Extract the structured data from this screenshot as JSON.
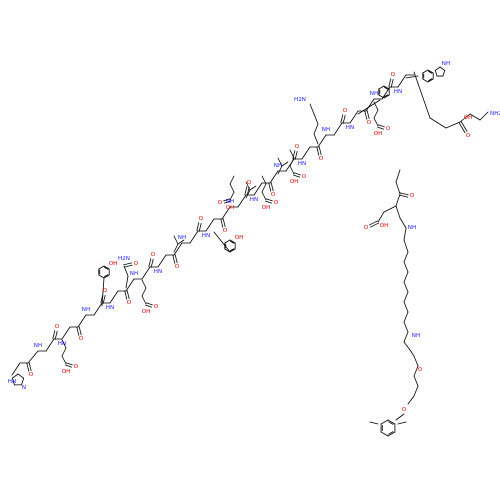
{
  "structure": {
    "kind": "skeletal-formula",
    "molecule": "lipidated peptide (linear amino-acid chain with Lys side-chain fatty-diacid / aryl-ether linker)",
    "colors": {
      "bond": "#000000",
      "oxygen": "#e00000",
      "nitrogen": "#1a1aff"
    },
    "atom_labels": {
      "oh": "OH",
      "nh": "NH",
      "hn": "HN",
      "h2n": "H2N",
      "nh2": "NH2",
      "o": "O",
      "n": "N",
      "h": "H",
      "hnh": "HN"
    }
  }
}
